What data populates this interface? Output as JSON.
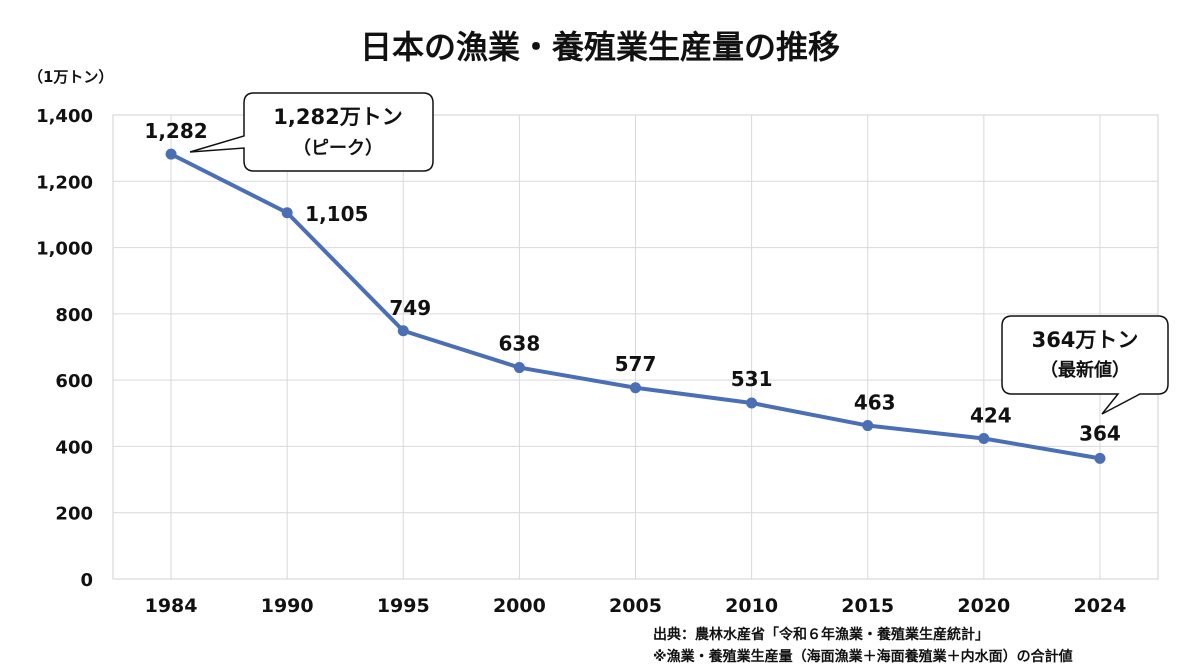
{
  "chart_data": {
    "type": "line",
    "title": "日本の漁業・養殖業生産量の推移",
    "unit_label": "（1万トン）",
    "categories": [
      "1984",
      "1990",
      "1995",
      "2000",
      "2005",
      "2010",
      "2015",
      "2020",
      "2024"
    ],
    "values": [
      1282,
      1105,
      749,
      638,
      577,
      531,
      463,
      424,
      364
    ],
    "data_labels": [
      "1,282",
      "1,105",
      "749",
      "638",
      "577",
      "531",
      "463",
      "424",
      "364"
    ],
    "ylim": [
      0,
      1400
    ],
    "yticks": [
      0,
      200,
      400,
      600,
      800,
      1000,
      1200,
      1400
    ],
    "ytick_labels": [
      "0",
      "200",
      "400",
      "600",
      "800",
      "1,000",
      "1,200",
      "1,400"
    ],
    "grid": true,
    "line_color": "#4a6fb5",
    "callouts": [
      {
        "main": "1,282万トン",
        "sub": "（ピーク）"
      },
      {
        "main": "364万トン",
        "sub": "（最新値）"
      }
    ]
  },
  "source": {
    "line1": "出典：農林水産省「令和６年漁業・養殖業生産統計」",
    "line2": "※漁業・養殖業生産量（海面漁業＋海面養殖業＋内水面）の合計値"
  }
}
